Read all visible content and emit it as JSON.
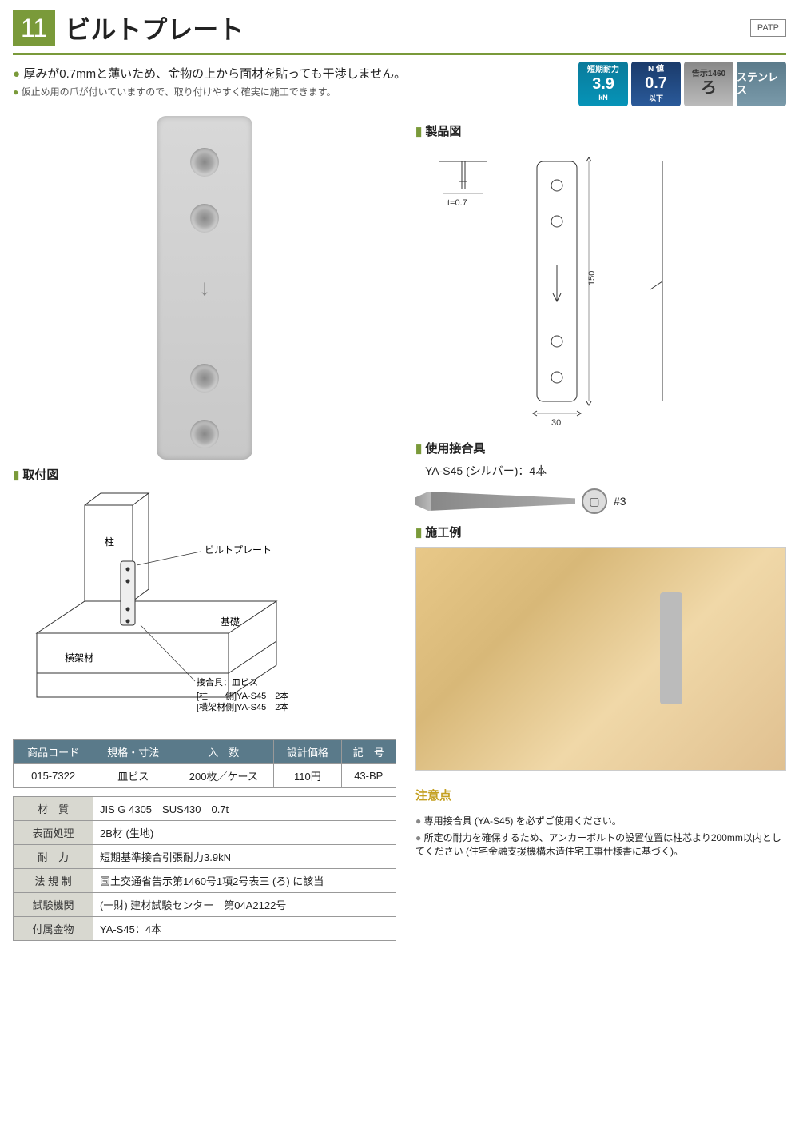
{
  "header": {
    "num": "11",
    "title": "ビルトプレート",
    "patp": "PATP"
  },
  "bullets": [
    {
      "text": "厚みが0.7mmと薄いため、金物の上から面材を貼っても干渉しません。",
      "cls": ""
    },
    {
      "text": "仮止め用の爪が付いていますので、取り付けやすく確実に施工できます。",
      "cls": "small"
    }
  ],
  "badges": [
    {
      "cls": "b-teal",
      "top": "短期耐力",
      "main": "3.9",
      "sub": "kN"
    },
    {
      "cls": "b-navy",
      "top": "N 値",
      "main": "0.7",
      "sub": "以下"
    },
    {
      "cls": "b-silver",
      "top": "告示1460",
      "main": "ろ",
      "sub": ""
    },
    {
      "cls": "b-steel",
      "top": "",
      "main": "ステンレス",
      "sub": ""
    }
  ],
  "sections": {
    "product": "製品図",
    "install": "取付図",
    "fastener": "使用接合具",
    "example": "施工例"
  },
  "product_dims": {
    "thickness": "t=0.7",
    "height": "150",
    "width": "30"
  },
  "plate_holes": [
    40,
    110,
    310,
    380
  ],
  "install": {
    "labels": {
      "pillar": "柱",
      "plate": "ビルトプレート",
      "beam": "横架材",
      "base": "基礎",
      "fastener_title": "接合具：皿ビス"
    },
    "fastener_rows": [
      {
        "side": "[柱　　側]",
        "spec": "YA-S45　2本"
      },
      {
        "side": "[横架材側]",
        "spec": "YA-S45　2本"
      }
    ]
  },
  "fastener": {
    "label": "YA-S45 (シルバー)：4本",
    "bit": "#3"
  },
  "price_table": {
    "headers": [
      "商品コード",
      "規格・寸法",
      "入　数",
      "設計価格",
      "記　号"
    ],
    "row": [
      "015-7322",
      "皿ビス",
      "200枚／ケース",
      "110円",
      "43-BP"
    ]
  },
  "spec_table": [
    {
      "k": "材　質",
      "v": "JIS G 4305　SUS430　0.7t"
    },
    {
      "k": "表面処理",
      "v": "2B材 (生地)"
    },
    {
      "k": "耐　力",
      "v": "短期基準接合引張耐力3.9kN"
    },
    {
      "k": "法 規 制",
      "v": "国土交通省告示第1460号1項2号表三 (ろ) に該当"
    },
    {
      "k": "試験機関",
      "v": "(一財) 建材試験センター　第04A2122号"
    },
    {
      "k": "付属金物",
      "v": "YA-S45：4本"
    }
  ],
  "notes": {
    "title": "注意点",
    "items": [
      "専用接合具 (YA-S45) を必ずご使用ください。",
      "所定の耐力を確保するため、アンカーボルトの設置位置は柱芯より200mm以内としてください (住宅金融支援機構木造住宅工事仕様書に基づく)。"
    ]
  }
}
